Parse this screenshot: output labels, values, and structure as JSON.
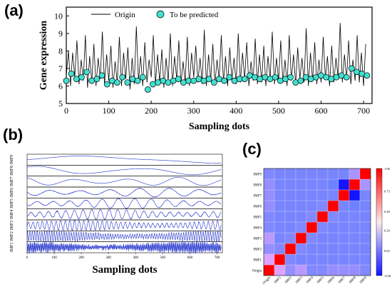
{
  "panels": {
    "a": "(a)",
    "b": "(b)",
    "c": "(c)"
  },
  "chart_data": [
    {
      "type": "line",
      "panel": "(a)",
      "title": "",
      "xlabel": "Sampling dots",
      "ylabel": "Gene expression",
      "xlim": [
        0,
        720
      ],
      "ylim": [
        5,
        10.5
      ],
      "xticks": [
        0,
        100,
        200,
        300,
        400,
        500,
        600,
        700
      ],
      "yticks": [
        5,
        6,
        7,
        8,
        9,
        10
      ],
      "legend": {
        "placement": "top-center",
        "entries": [
          "Origin",
          "To be predicted"
        ]
      },
      "series": [
        {
          "name": "Origin",
          "kind": "line",
          "color": "#000000",
          "x_start": 0,
          "x_end": 715,
          "x_step": 5,
          "values": [
            6.6,
            8.0,
            6.0,
            7.9,
            6.5,
            8.6,
            6.1,
            7.5,
            6.3,
            8.9,
            5.9,
            7.7,
            6.2,
            8.4,
            6.0,
            7.6,
            6.4,
            9.1,
            6.1,
            7.8,
            6.3,
            8.3,
            5.9,
            7.4,
            6.2,
            8.8,
            6.0,
            7.9,
            6.4,
            8.2,
            5.8,
            7.6,
            6.1,
            9.4,
            6.3,
            7.7,
            6.0,
            8.5,
            6.2,
            7.5,
            6.5,
            8.9,
            6.1,
            7.8,
            6.2,
            8.1,
            5.9,
            7.6,
            6.3,
            9.0,
            6.0,
            7.7,
            6.4,
            8.6,
            6.1,
            7.4,
            6.2,
            8.8,
            6.0,
            7.9,
            6.5,
            8.3,
            6.2,
            7.6,
            6.1,
            9.2,
            6.0,
            7.8,
            6.3,
            8.4,
            6.1,
            7.5,
            6.4,
            8.9,
            6.2,
            7.7,
            6.0,
            8.2,
            6.3,
            7.6,
            6.1,
            9.0,
            6.2,
            7.9,
            6.4,
            8.5,
            6.0,
            7.4,
            6.3,
            8.7,
            6.1,
            7.8,
            6.2,
            8.3,
            6.0,
            7.7,
            6.4,
            9.1,
            6.1,
            7.6,
            6.3,
            8.6,
            6.2,
            7.5,
            6.0,
            8.9,
            6.3,
            7.8,
            6.1,
            8.2,
            6.4,
            7.6,
            6.2,
            9.3,
            6.0,
            7.9,
            6.3,
            8.5,
            6.1,
            7.5,
            6.2,
            8.8,
            6.4,
            7.7,
            6.0,
            8.3,
            6.2,
            7.6,
            6.5,
            9.6,
            6.2,
            7.8,
            6.4,
            8.6,
            6.1,
            7.5,
            6.3,
            8.9,
            6.2,
            7.9,
            6.0,
            8.4
          ]
        },
        {
          "name": "To be predicted",
          "kind": "scatter",
          "color": "#40E0D0",
          "x": [
            0,
            12,
            24,
            36,
            48,
            60,
            72,
            84,
            96,
            108,
            120,
            132,
            144,
            156,
            168,
            180,
            192,
            204,
            216,
            228,
            240,
            252,
            264,
            276,
            288,
            300,
            312,
            324,
            336,
            348,
            360,
            372,
            384,
            396,
            408,
            420,
            432,
            444,
            456,
            468,
            480,
            492,
            504,
            516,
            528,
            540,
            552,
            564,
            576,
            588,
            600,
            612,
            624,
            636,
            648,
            660,
            672,
            684,
            696,
            708
          ],
          "y": [
            6.3,
            6.7,
            6.4,
            6.5,
            6.8,
            6.3,
            6.4,
            6.6,
            6.1,
            6.3,
            6.2,
            6.5,
            6.2,
            6.4,
            6.3,
            6.5,
            5.8,
            6.1,
            6.2,
            6.3,
            6.2,
            6.3,
            6.4,
            6.2,
            6.3,
            6.3,
            6.4,
            6.3,
            6.4,
            6.2,
            6.4,
            6.3,
            6.5,
            6.3,
            6.4,
            6.4,
            6.6,
            6.5,
            6.4,
            6.5,
            6.4,
            6.5,
            6.3,
            6.4,
            6.5,
            6.2,
            6.3,
            6.5,
            6.4,
            6.5,
            6.6,
            6.5,
            6.4,
            6.5,
            6.6,
            6.5,
            7.0,
            6.8,
            6.7,
            6.6
          ]
        }
      ]
    },
    {
      "type": "line",
      "panel": "(b)",
      "title": "",
      "xlabel": "Sampling dots",
      "xlim": [
        0,
        720
      ],
      "xticks": [
        0,
        100,
        200,
        300,
        400,
        500,
        600,
        700
      ],
      "color": "#2233cc",
      "subplots": [
        {
          "ylabel": "IMF9",
          "amp": 0.35,
          "period": 900,
          "noise": 0.0
        },
        {
          "ylabel": "IMF8",
          "amp": 0.4,
          "period": 380,
          "noise": 0.0
        },
        {
          "ylabel": "IMF7",
          "amp": 0.4,
          "period": 190,
          "noise": 0.0
        },
        {
          "ylabel": "IMF6",
          "amp": 0.4,
          "period": 110,
          "noise": 0.05
        },
        {
          "ylabel": "IMF5",
          "amp": 0.45,
          "period": 60,
          "noise": 0.05
        },
        {
          "ylabel": "IMF4",
          "amp": 0.45,
          "period": 32,
          "noise": 0.08
        },
        {
          "ylabel": "IMF3",
          "amp": 0.45,
          "period": 17,
          "noise": 0.1
        },
        {
          "ylabel": "IMF2",
          "amp": 0.45,
          "period": 9,
          "noise": 0.15
        },
        {
          "ylabel": "IMF1",
          "amp": 0.45,
          "period": 4,
          "noise": 0.25
        }
      ]
    },
    {
      "type": "heatmap",
      "panel": "(c)",
      "title": "",
      "labels": [
        "Origin",
        "IMF1",
        "IMF2",
        "IMF3",
        "IMF4",
        "IMF5",
        "IMF6",
        "IMF7",
        "IMF8",
        "IMF9"
      ],
      "colorbar": {
        "min": -0.28,
        "max": 1.0,
        "ticks": [
          1.0,
          0.73,
          0.49,
          0.26,
          0.02,
          -0.28
        ],
        "tick_labels": [
          "1.00",
          "0.73",
          "0.49",
          "0.26",
          "0.02",
          "-0.28"
        ]
      },
      "matrix": [
        [
          1.0,
          0.55,
          0.2,
          0.38,
          0.1,
          0.1,
          0.2,
          0.2,
          0.2,
          0.1
        ],
        [
          0.55,
          1.0,
          0.1,
          0.05,
          0.05,
          0.05,
          0.05,
          0.05,
          0.05,
          0.05
        ],
        [
          0.2,
          0.1,
          1.0,
          0.1,
          0.05,
          0.05,
          0.05,
          0.05,
          0.05,
          0.05
        ],
        [
          0.38,
          0.05,
          0.1,
          1.0,
          0.1,
          0.05,
          0.05,
          0.05,
          0.05,
          0.05
        ],
        [
          0.1,
          0.05,
          0.05,
          0.1,
          1.0,
          0.1,
          0.05,
          0.05,
          0.05,
          0.05
        ],
        [
          0.1,
          0.05,
          0.05,
          0.05,
          0.1,
          1.0,
          0.1,
          0.05,
          0.05,
          0.05
        ],
        [
          0.2,
          0.05,
          0.05,
          0.05,
          0.05,
          0.1,
          1.0,
          0.05,
          0.0,
          0.05
        ],
        [
          0.2,
          0.05,
          0.05,
          0.05,
          0.05,
          0.05,
          0.05,
          1.0,
          -0.28,
          0.05
        ],
        [
          0.2,
          0.05,
          0.05,
          0.05,
          0.05,
          0.05,
          0.0,
          -0.28,
          1.0,
          0.3
        ],
        [
          0.1,
          0.05,
          0.05,
          0.05,
          0.05,
          0.05,
          0.05,
          0.05,
          0.3,
          1.0
        ]
      ]
    }
  ]
}
